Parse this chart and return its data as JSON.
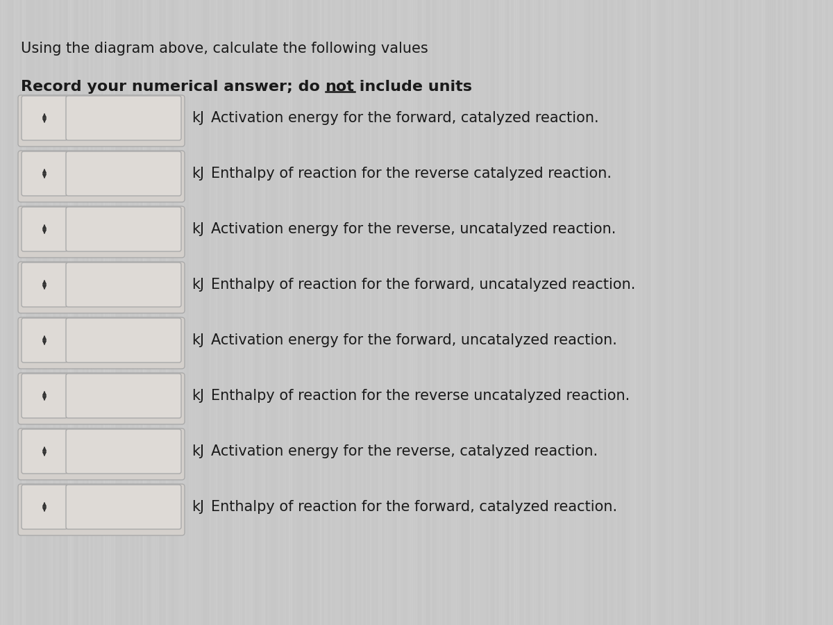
{
  "title_line1": "Using the diagram above, calculate the following values",
  "title_line2_pre": "Record your numerical answer; do ",
  "title_line2_not": "not",
  "title_line2_post": " include units",
  "rows": [
    "Activation energy for the forward, catalyzed reaction.",
    "Enthalpy of reaction for the reverse catalyzed reaction.",
    "Activation energy for the reverse, uncatalyzed reaction.",
    "Enthalpy of reaction for the forward, uncatalyzed reaction.",
    "Activation energy for the forward, uncatalyzed reaction.",
    "Enthalpy of reaction for the reverse uncatalyzed reaction.",
    "Activation energy for the reverse, catalyzed reaction.",
    "Enthalpy of reaction for the forward, catalyzed reaction."
  ],
  "unit_label": "kJ",
  "bg_color": "#c9c9c9",
  "outer_box_color": "#d4d0cc",
  "inner_box_color": "#dedad6",
  "box_edge_color": "#aaaaaa",
  "text_color": "#1a1a1a",
  "title1_fontsize": 15,
  "title2_fontsize": 16,
  "row_fontsize": 15,
  "fig_width": 12.0,
  "fig_height": 9.0,
  "dpi": 100
}
